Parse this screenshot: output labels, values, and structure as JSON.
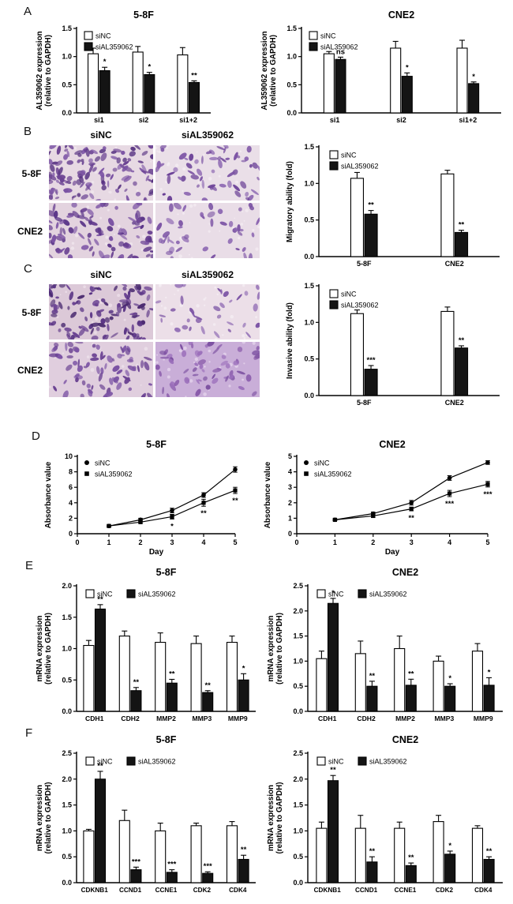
{
  "figure": {
    "panels": [
      {
        "id": "A",
        "label": "A"
      },
      {
        "id": "B",
        "label": "B",
        "col_headers": [
          "siNC",
          "siAL359062"
        ],
        "row_headers": [
          "5-8F",
          "CNE2"
        ]
      },
      {
        "id": "C",
        "label": "C",
        "col_headers": [
          "siNC",
          "siAL359062"
        ],
        "row_headers": [
          "5-8F",
          "CNE2"
        ]
      },
      {
        "id": "D",
        "label": "D"
      },
      {
        "id": "E",
        "label": "E"
      },
      {
        "id": "F",
        "label": "F"
      }
    ]
  },
  "colors": {
    "bar_sinc": "#ffffff",
    "bar_sial": "#141414",
    "axis": "#000000",
    "stain_purple": "#6a4292"
  },
  "chart_data": [
    {
      "id": "A-5-8F",
      "panel": "A",
      "type": "bar",
      "title": "5-8F",
      "ylabel": "AL359062 expression\n(relative to GAPDH)",
      "ylim": [
        0,
        1.5
      ],
      "yticks": [
        "0.0",
        "0.5",
        "1.0",
        "1.5"
      ],
      "categories": [
        "si1",
        "si2",
        "si1+2"
      ],
      "series": [
        {
          "name": "siNC",
          "fill": "#ffffff",
          "values": [
            1.05,
            1.08,
            1.03
          ],
          "errors": [
            0.1,
            0.1,
            0.13
          ]
        },
        {
          "name": "siAL359062",
          "fill": "#141414",
          "values": [
            0.75,
            0.68,
            0.54
          ],
          "errors": [
            0.06,
            0.04,
            0.03
          ]
        }
      ],
      "significance": [
        "*",
        "*",
        "**"
      ],
      "legend_position": "top-left"
    },
    {
      "id": "A-CNE2",
      "panel": "A",
      "type": "bar",
      "title": "CNE2",
      "ylabel": "AL359062 expression\n(relative to GAPDH)",
      "ylim": [
        0,
        1.5
      ],
      "yticks": [
        "0.0",
        "0.5",
        "1.0",
        "1.5"
      ],
      "categories": [
        "si1",
        "si2",
        "si1+2"
      ],
      "series": [
        {
          "name": "siNC",
          "fill": "#ffffff",
          "values": [
            1.05,
            1.15,
            1.15
          ],
          "errors": [
            0.04,
            0.12,
            0.14
          ]
        },
        {
          "name": "siAL359062",
          "fill": "#141414",
          "values": [
            0.95,
            0.65,
            0.52
          ],
          "errors": [
            0.04,
            0.06,
            0.03
          ]
        }
      ],
      "significance": [
        "ns",
        "*",
        "*"
      ],
      "legend_position": "top-left"
    },
    {
      "id": "B-migration",
      "panel": "B",
      "type": "bar",
      "title": "",
      "ylabel": "Migratory ability (fold)",
      "ylim": [
        0,
        1.5
      ],
      "yticks": [
        "0.0",
        "0.5",
        "1.0",
        "1.5"
      ],
      "categories": [
        "5-8F",
        "CNE2"
      ],
      "series": [
        {
          "name": "siNC",
          "fill": "#ffffff",
          "values": [
            1.07,
            1.13
          ],
          "errors": [
            0.08,
            0.05
          ]
        },
        {
          "name": "siAL359062",
          "fill": "#141414",
          "values": [
            0.58,
            0.33
          ],
          "errors": [
            0.05,
            0.03
          ]
        }
      ],
      "significance": [
        "**",
        "**"
      ],
      "legend_position": "top-left"
    },
    {
      "id": "C-invasion",
      "panel": "C",
      "type": "bar",
      "title": "",
      "ylabel": "Invasive ability (fold)",
      "ylim": [
        0,
        1.5
      ],
      "yticks": [
        "0.0",
        "0.5",
        "1.0",
        "1.5"
      ],
      "categories": [
        "5-8F",
        "CNE2"
      ],
      "series": [
        {
          "name": "siNC",
          "fill": "#ffffff",
          "values": [
            1.12,
            1.15
          ],
          "errors": [
            0.05,
            0.06
          ]
        },
        {
          "name": "siAL359062",
          "fill": "#141414",
          "values": [
            0.36,
            0.65
          ],
          "errors": [
            0.05,
            0.03
          ]
        }
      ],
      "significance": [
        "***",
        "**"
      ],
      "legend_position": "top-left"
    },
    {
      "id": "D-5-8F",
      "panel": "D",
      "type": "line",
      "title": "5-8F",
      "ylabel": "Absorbance value",
      "xlabel": "Day",
      "xlim": [
        0,
        5
      ],
      "xticks": [
        "0",
        "1",
        "2",
        "3",
        "4",
        "5"
      ],
      "ylim": [
        0,
        10
      ],
      "yticks": [
        "0",
        "2",
        "4",
        "6",
        "8",
        "10"
      ],
      "x": [
        1,
        2,
        3,
        4,
        5
      ],
      "series": [
        {
          "name": "siNC",
          "marker": "circle",
          "values": [
            1.0,
            1.8,
            3.0,
            5.0,
            8.3
          ],
          "errors": [
            0.12,
            0.2,
            0.3,
            0.3,
            0.35
          ]
        },
        {
          "name": "siAL359062",
          "marker": "square",
          "values": [
            1.0,
            1.5,
            2.2,
            4.0,
            5.6
          ],
          "errors": [
            0.12,
            0.15,
            0.3,
            0.45,
            0.4
          ]
        }
      ],
      "significance": [
        {
          "day": 3,
          "text": "*"
        },
        {
          "day": 4,
          "text": "**"
        },
        {
          "day": 5,
          "text": "**"
        }
      ],
      "legend_position": "top-left"
    },
    {
      "id": "D-CNE2",
      "panel": "D",
      "type": "line",
      "title": "CNE2",
      "ylabel": "Absorbance value",
      "xlabel": "Day",
      "xlim": [
        0,
        5
      ],
      "xticks": [
        "0",
        "1",
        "2",
        "3",
        "4",
        "5"
      ],
      "ylim": [
        0,
        5
      ],
      "yticks": [
        "0",
        "1",
        "2",
        "3",
        "4",
        "5"
      ],
      "x": [
        1,
        2,
        3,
        4,
        5
      ],
      "series": [
        {
          "name": "siNC",
          "marker": "circle",
          "values": [
            0.9,
            1.3,
            2.0,
            3.6,
            4.6
          ],
          "errors": [
            0.06,
            0.1,
            0.15,
            0.15,
            0.12
          ]
        },
        {
          "name": "siAL359062",
          "marker": "square",
          "values": [
            0.9,
            1.15,
            1.6,
            2.6,
            3.2
          ],
          "errors": [
            0.06,
            0.1,
            0.12,
            0.2,
            0.18
          ]
        }
      ],
      "significance": [
        {
          "day": 3,
          "text": "**"
        },
        {
          "day": 4,
          "text": "***"
        },
        {
          "day": 5,
          "text": "***"
        }
      ],
      "legend_position": "top-left"
    },
    {
      "id": "E-5-8F",
      "panel": "E",
      "type": "bar",
      "title": "5-8F",
      "ylabel": "mRNA expression\n(relative to GAPDH)",
      "ylim": [
        0,
        2.0
      ],
      "yticks": [
        "0.0",
        "0.5",
        "1.0",
        "1.5",
        "2.0"
      ],
      "categories": [
        "CDH1",
        "CDH2",
        "MMP2",
        "MMP3",
        "MMP9"
      ],
      "series": [
        {
          "name": "siNC",
          "fill": "#ffffff",
          "values": [
            1.05,
            1.2,
            1.1,
            1.08,
            1.1
          ],
          "errors": [
            0.08,
            0.08,
            0.15,
            0.12,
            0.1
          ]
        },
        {
          "name": "siAL359062",
          "fill": "#141414",
          "values": [
            1.63,
            0.33,
            0.45,
            0.3,
            0.5
          ],
          "errors": [
            0.07,
            0.05,
            0.06,
            0.03,
            0.1
          ]
        }
      ],
      "significance": [
        "**",
        "**",
        "**",
        "**",
        "*"
      ],
      "legend_position": "top"
    },
    {
      "id": "E-CNE2",
      "panel": "E",
      "type": "bar",
      "title": "CNE2",
      "ylabel": "mRNA expression\n(relative to GAPDH)",
      "ylim": [
        0,
        2.5
      ],
      "yticks": [
        "0.0",
        "0.5",
        "1.0",
        "1.5",
        "2.0",
        "2.5"
      ],
      "categories": [
        "CDH1",
        "CDH2",
        "MMP2",
        "MMP3",
        "MMP9"
      ],
      "series": [
        {
          "name": "siNC",
          "fill": "#ffffff",
          "values": [
            1.05,
            1.15,
            1.25,
            1.0,
            1.2
          ],
          "errors": [
            0.15,
            0.25,
            0.25,
            0.1,
            0.15
          ]
        },
        {
          "name": "siAL359062",
          "fill": "#141414",
          "values": [
            2.15,
            0.5,
            0.52,
            0.5,
            0.52
          ],
          "errors": [
            0.1,
            0.1,
            0.12,
            0.05,
            0.15
          ]
        }
      ],
      "significance": [
        "*",
        "**",
        "**",
        "*",
        "*"
      ],
      "legend_position": "top"
    },
    {
      "id": "F-5-8F",
      "panel": "F",
      "type": "bar",
      "title": "5-8F",
      "ylabel": "mRNA expression\n(relative to GAPDH)",
      "ylim": [
        0,
        2.5
      ],
      "yticks": [
        "0.0",
        "0.5",
        "1.0",
        "1.5",
        "2.0",
        "2.5"
      ],
      "categories": [
        "CDKNB1",
        "CCND1",
        "CCNE1",
        "CDK2",
        "CDK4"
      ],
      "series": [
        {
          "name": "siNC",
          "fill": "#ffffff",
          "values": [
            1.0,
            1.2,
            1.0,
            1.1,
            1.1
          ],
          "errors": [
            0.03,
            0.2,
            0.15,
            0.05,
            0.08
          ]
        },
        {
          "name": "siAL359062",
          "fill": "#141414",
          "values": [
            2.0,
            0.25,
            0.2,
            0.18,
            0.45
          ],
          "errors": [
            0.15,
            0.05,
            0.05,
            0.03,
            0.08
          ]
        }
      ],
      "significance": [
        "**",
        "***",
        "***",
        "***",
        "**"
      ],
      "legend_position": "top"
    },
    {
      "id": "F-CNE2",
      "panel": "F",
      "type": "bar",
      "title": "CNE2",
      "ylabel": "mRNA expression\n(relative to GAPDH)",
      "ylim": [
        0,
        2.5
      ],
      "yticks": [
        "0.0",
        "0.5",
        "1.0",
        "1.5",
        "2.0",
        "2.5"
      ],
      "categories": [
        "CDKNB1",
        "CCND1",
        "CCNE1",
        "CDK2",
        "CDK4"
      ],
      "series": [
        {
          "name": "siNC",
          "fill": "#ffffff",
          "values": [
            1.05,
            1.05,
            1.05,
            1.18,
            1.05
          ],
          "errors": [
            0.12,
            0.25,
            0.12,
            0.12,
            0.05
          ]
        },
        {
          "name": "siAL359062",
          "fill": "#141414",
          "values": [
            1.97,
            0.4,
            0.33,
            0.55,
            0.45
          ],
          "errors": [
            0.1,
            0.1,
            0.05,
            0.06,
            0.05
          ]
        }
      ],
      "significance": [
        "**",
        "**",
        "**",
        "*",
        "**"
      ],
      "legend_position": "top"
    }
  ]
}
